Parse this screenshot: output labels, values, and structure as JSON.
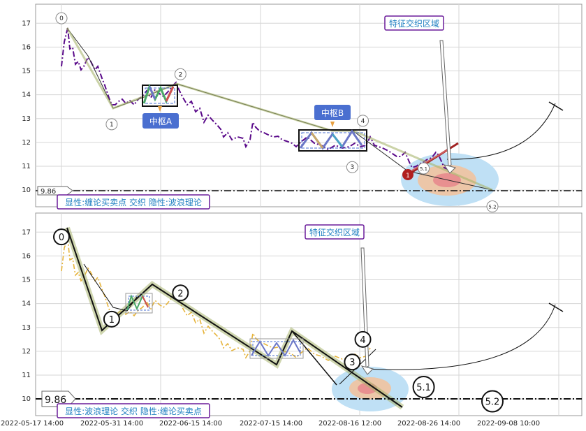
{
  "chart_data": [
    {
      "type": "line",
      "panel": "top",
      "y_ticks": [
        "10",
        "11",
        "12",
        "13",
        "14",
        "15",
        "16",
        "17"
      ],
      "ylim": [
        9.3,
        17.8
      ],
      "grid": true,
      "price_line": {
        "label": "9.86",
        "value": 9.86
      },
      "pivots": [
        {
          "label": "0",
          "x": 0.0,
          "y": 16.8
        },
        {
          "label": "1",
          "x": 9.5,
          "y": 13.35
        },
        {
          "label": "2",
          "x": 22.5,
          "y": 14.45
        },
        {
          "label": "3",
          "x": 55.0,
          "y": 11.55
        },
        {
          "label": "4",
          "x": 57.0,
          "y": 12.5
        },
        {
          "label": "5.1",
          "x": 68.5,
          "y": 10.5
        },
        {
          "label": "5.2",
          "x": 81.5,
          "y": 9.9
        }
      ],
      "zones": [
        {
          "label": "中枢A",
          "y_low": 13.5,
          "y_high": 14.4
        },
        {
          "label": "中枢B",
          "y_low": 11.6,
          "y_high": 12.5
        }
      ],
      "annotation": "特征交织区域",
      "legend_text": "显性:缠论买卖点 交织 隐性:波浪理论",
      "marker": "1"
    },
    {
      "type": "line",
      "panel": "bottom",
      "y_ticks": [
        "10",
        "11",
        "12",
        "13",
        "14",
        "15",
        "16",
        "17"
      ],
      "ylim": [
        9.3,
        17.8
      ],
      "grid": true,
      "price_line": {
        "label": "9.86",
        "value": 9.86
      },
      "pivots": [
        {
          "label": "0",
          "x": 0.0,
          "y": 16.8
        },
        {
          "label": "1",
          "x": 9.5,
          "y": 13.35
        },
        {
          "label": "2",
          "x": 22.5,
          "y": 14.45
        },
        {
          "label": "3",
          "x": 55.0,
          "y": 11.55
        },
        {
          "label": "4",
          "x": 57.0,
          "y": 12.5
        },
        {
          "label": "5.1",
          "x": 68.5,
          "y": 10.5
        },
        {
          "label": "5.2",
          "x": 81.5,
          "y": 9.9
        }
      ],
      "annotation": "特征交织区域",
      "legend_text": "显性:波浪理论 交织 隐性:缠论买卖点",
      "x_tick_labels": [
        "2022-05-17 14:00",
        "2022-05-31 14:00",
        "2022-06-15 14:00",
        "2022-07-15 14:00",
        "2022-08-16 12:00",
        "2022-08-26 14:00",
        "2022-09-08 10:00"
      ]
    }
  ],
  "colors": {
    "price_top": "#5a0a8a",
    "price_bottom": "#e6b43c",
    "label_box_border": "#6a1b9a",
    "label_text": "#1e7fc1",
    "pivot_box": "#4a6fd0",
    "zone_outer": "#bfe0f5",
    "zone_mid": "#ecc6a8",
    "zone_inner": "#e06060",
    "arrow_red": "#b02020"
  }
}
